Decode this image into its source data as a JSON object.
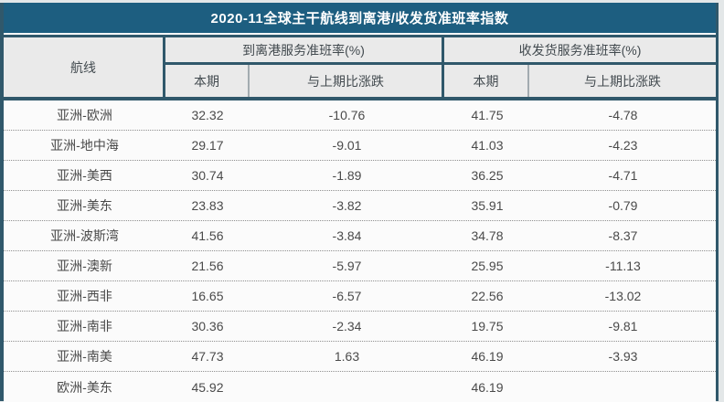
{
  "title": "2020-11全球主干航线到离港/收发货准班率指数",
  "colors": {
    "title_bar_bg": "#1d5e80",
    "title_text": "#ffffff",
    "border_dark": "#30586b",
    "header_bg": "#eaeaea",
    "row_bg": "#fbfbfb",
    "data_text": "#4a4a4a"
  },
  "chart_data": {
    "type": "table",
    "title": "2020-11全球主干航线到离港/收发货准班率指数",
    "header": {
      "route": "航线",
      "groups": [
        {
          "label": "到离港服务准班率(%)",
          "subcolumns": [
            "本期",
            "与上期比涨跌"
          ]
        },
        {
          "label": "收发货服务准班率(%)",
          "subcolumns": [
            "本期",
            "与上期比涨跌"
          ]
        }
      ]
    },
    "rows": [
      {
        "route": "亚洲-欧洲",
        "dep_current": "32.32",
        "dep_change": "-10.76",
        "recv_current": "41.75",
        "recv_change": "-4.78"
      },
      {
        "route": "亚洲-地中海",
        "dep_current": "29.17",
        "dep_change": "-9.01",
        "recv_current": "41.03",
        "recv_change": "-4.23"
      },
      {
        "route": "亚洲-美西",
        "dep_current": "30.74",
        "dep_change": "-1.89",
        "recv_current": "36.25",
        "recv_change": "-4.71"
      },
      {
        "route": "亚洲-美东",
        "dep_current": "23.83",
        "dep_change": "-3.82",
        "recv_current": "35.91",
        "recv_change": "-0.79"
      },
      {
        "route": "亚洲-波斯湾",
        "dep_current": "41.56",
        "dep_change": "-3.84",
        "recv_current": "34.78",
        "recv_change": "-8.37"
      },
      {
        "route": "亚洲-澳新",
        "dep_current": "21.56",
        "dep_change": "-5.97",
        "recv_current": "25.95",
        "recv_change": "-11.13"
      },
      {
        "route": "亚洲-西非",
        "dep_current": "16.65",
        "dep_change": "-6.57",
        "recv_current": "22.56",
        "recv_change": "-13.02"
      },
      {
        "route": "亚洲-南非",
        "dep_current": "30.36",
        "dep_change": "-2.34",
        "recv_current": "19.75",
        "recv_change": "-9.81"
      },
      {
        "route": "亚洲-南美",
        "dep_current": "47.73",
        "dep_change": "1.63",
        "recv_current": "46.19",
        "recv_change": "-3.93"
      },
      {
        "route": "欧洲-美东",
        "dep_current": "45.92",
        "dep_change": "",
        "recv_current": "46.19",
        "recv_change": ""
      }
    ]
  }
}
